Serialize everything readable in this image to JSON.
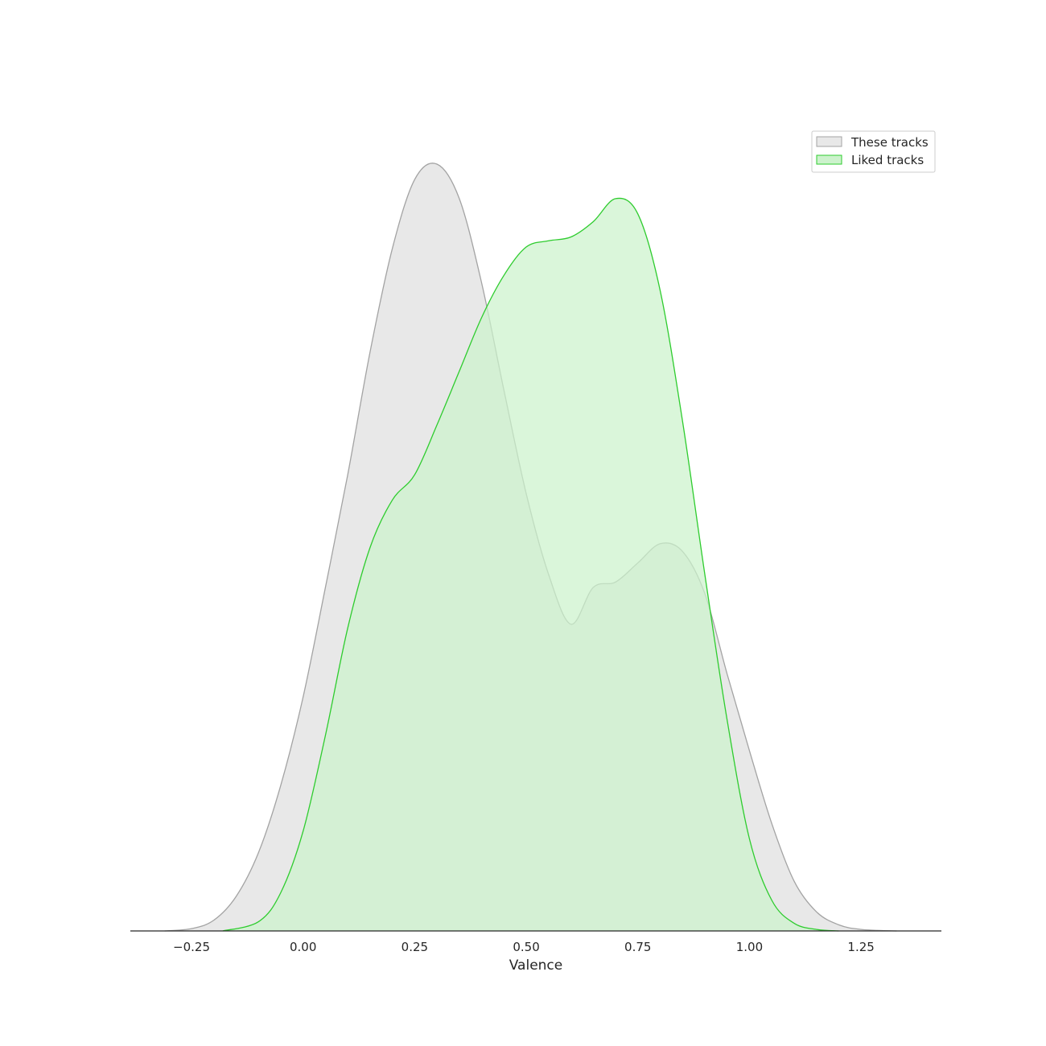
{
  "chart_data": {
    "type": "area",
    "xlabel": "Valence",
    "ylabel": "",
    "xlim": [
      -0.387,
      1.43
    ],
    "ylim": [
      0,
      1.0
    ],
    "x_ticks": [
      -0.25,
      0.0,
      0.25,
      0.5,
      0.75,
      1.0,
      1.25
    ],
    "x_tick_labels": [
      "−0.25",
      "0.00",
      "0.25",
      "0.50",
      "0.75",
      "1.00",
      "1.25"
    ],
    "legend": {
      "placement": "top-right",
      "entries": [
        "These tracks",
        "Liked tracks"
      ]
    },
    "series": [
      {
        "name": "These tracks",
        "fill": "#e8e8e8",
        "stroke": "#a3a3a3",
        "points": [
          [
            -0.31,
            0.0
          ],
          [
            -0.25,
            0.003
          ],
          [
            -0.2,
            0.014
          ],
          [
            -0.15,
            0.045
          ],
          [
            -0.1,
            0.102
          ],
          [
            -0.05,
            0.19
          ],
          [
            0.0,
            0.305
          ],
          [
            0.05,
            0.448
          ],
          [
            0.1,
            0.595
          ],
          [
            0.15,
            0.755
          ],
          [
            0.2,
            0.89
          ],
          [
            0.25,
            0.98
          ],
          [
            0.3,
            1.0
          ],
          [
            0.35,
            0.955
          ],
          [
            0.4,
            0.845
          ],
          [
            0.45,
            0.705
          ],
          [
            0.5,
            0.57
          ],
          [
            0.55,
            0.465
          ],
          [
            0.6,
            0.4
          ],
          [
            0.65,
            0.448
          ],
          [
            0.7,
            0.455
          ],
          [
            0.75,
            0.48
          ],
          [
            0.8,
            0.505
          ],
          [
            0.85,
            0.495
          ],
          [
            0.9,
            0.44
          ],
          [
            0.95,
            0.335
          ],
          [
            1.0,
            0.235
          ],
          [
            1.05,
            0.14
          ],
          [
            1.1,
            0.065
          ],
          [
            1.15,
            0.025
          ],
          [
            1.2,
            0.008
          ],
          [
            1.25,
            0.002
          ],
          [
            1.33,
            0.0
          ]
        ]
      },
      {
        "name": "Liked tracks",
        "fill": "#ccf2cc",
        "stroke": "#2ecc2e",
        "points": [
          [
            -0.18,
            0.0
          ],
          [
            -0.1,
            0.012
          ],
          [
            -0.05,
            0.05
          ],
          [
            0.0,
            0.13
          ],
          [
            0.05,
            0.255
          ],
          [
            0.1,
            0.395
          ],
          [
            0.15,
            0.5
          ],
          [
            0.2,
            0.562
          ],
          [
            0.25,
            0.595
          ],
          [
            0.3,
            0.66
          ],
          [
            0.35,
            0.73
          ],
          [
            0.4,
            0.8
          ],
          [
            0.45,
            0.855
          ],
          [
            0.5,
            0.892
          ],
          [
            0.55,
            0.9
          ],
          [
            0.6,
            0.905
          ],
          [
            0.65,
            0.925
          ],
          [
            0.7,
            0.955
          ],
          [
            0.75,
            0.935
          ],
          [
            0.8,
            0.835
          ],
          [
            0.85,
            0.665
          ],
          [
            0.9,
            0.465
          ],
          [
            0.95,
            0.275
          ],
          [
            1.0,
            0.12
          ],
          [
            1.05,
            0.04
          ],
          [
            1.1,
            0.01
          ],
          [
            1.15,
            0.002
          ],
          [
            1.2,
            0.0
          ]
        ]
      }
    ]
  }
}
